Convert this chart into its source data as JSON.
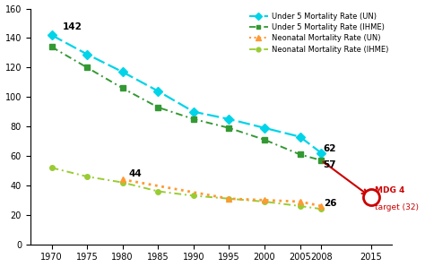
{
  "years_main": [
    1970,
    1975,
    1980,
    1985,
    1990,
    1995,
    2000,
    2005,
    2008
  ],
  "under5_UN": [
    142,
    129,
    117,
    104,
    90,
    85,
    79,
    73,
    62
  ],
  "under5_IHME": [
    134,
    120,
    106,
    93,
    85,
    79,
    71,
    61,
    57
  ],
  "neonatal_UN_years": [
    1980,
    1995,
    2000,
    2005,
    2008
  ],
  "neonatal_UN_vals": [
    44,
    31,
    30,
    29,
    26
  ],
  "neonatal_IHME": [
    52,
    46,
    42,
    36,
    33,
    31,
    29,
    26,
    24
  ],
  "target_year": 2015,
  "target_value": 32,
  "from_x": 2008,
  "from_y_u5UN": 62,
  "from_y_u5IHME": 57,
  "color_under5_UN": "#00d4e8",
  "color_under5_IHME": "#339933",
  "color_neonatal_UN": "#ff9933",
  "color_neonatal_IHME": "#99cc33",
  "color_target": "#cc0000",
  "ylim": [
    0,
    160
  ],
  "yticks": [
    0,
    20,
    40,
    60,
    80,
    100,
    120,
    140,
    160
  ],
  "xticks": [
    1970,
    1975,
    1980,
    1985,
    1990,
    1995,
    2000,
    2005,
    2008,
    2015
  ],
  "xlim_left": 1967,
  "xlim_right": 2018,
  "label_under5_UN": "Under 5 Mortality Rate (UN)",
  "label_under5_IHME": "Under 5 Mortality Rate (IHME)",
  "label_neonatal_UN": "Neonatal Mortality Rate (UN)",
  "label_neonatal_IHME": "Neonatal Mortality Rate (IHME)",
  "figwidth": 4.74,
  "figheight": 2.98,
  "dpi": 100
}
